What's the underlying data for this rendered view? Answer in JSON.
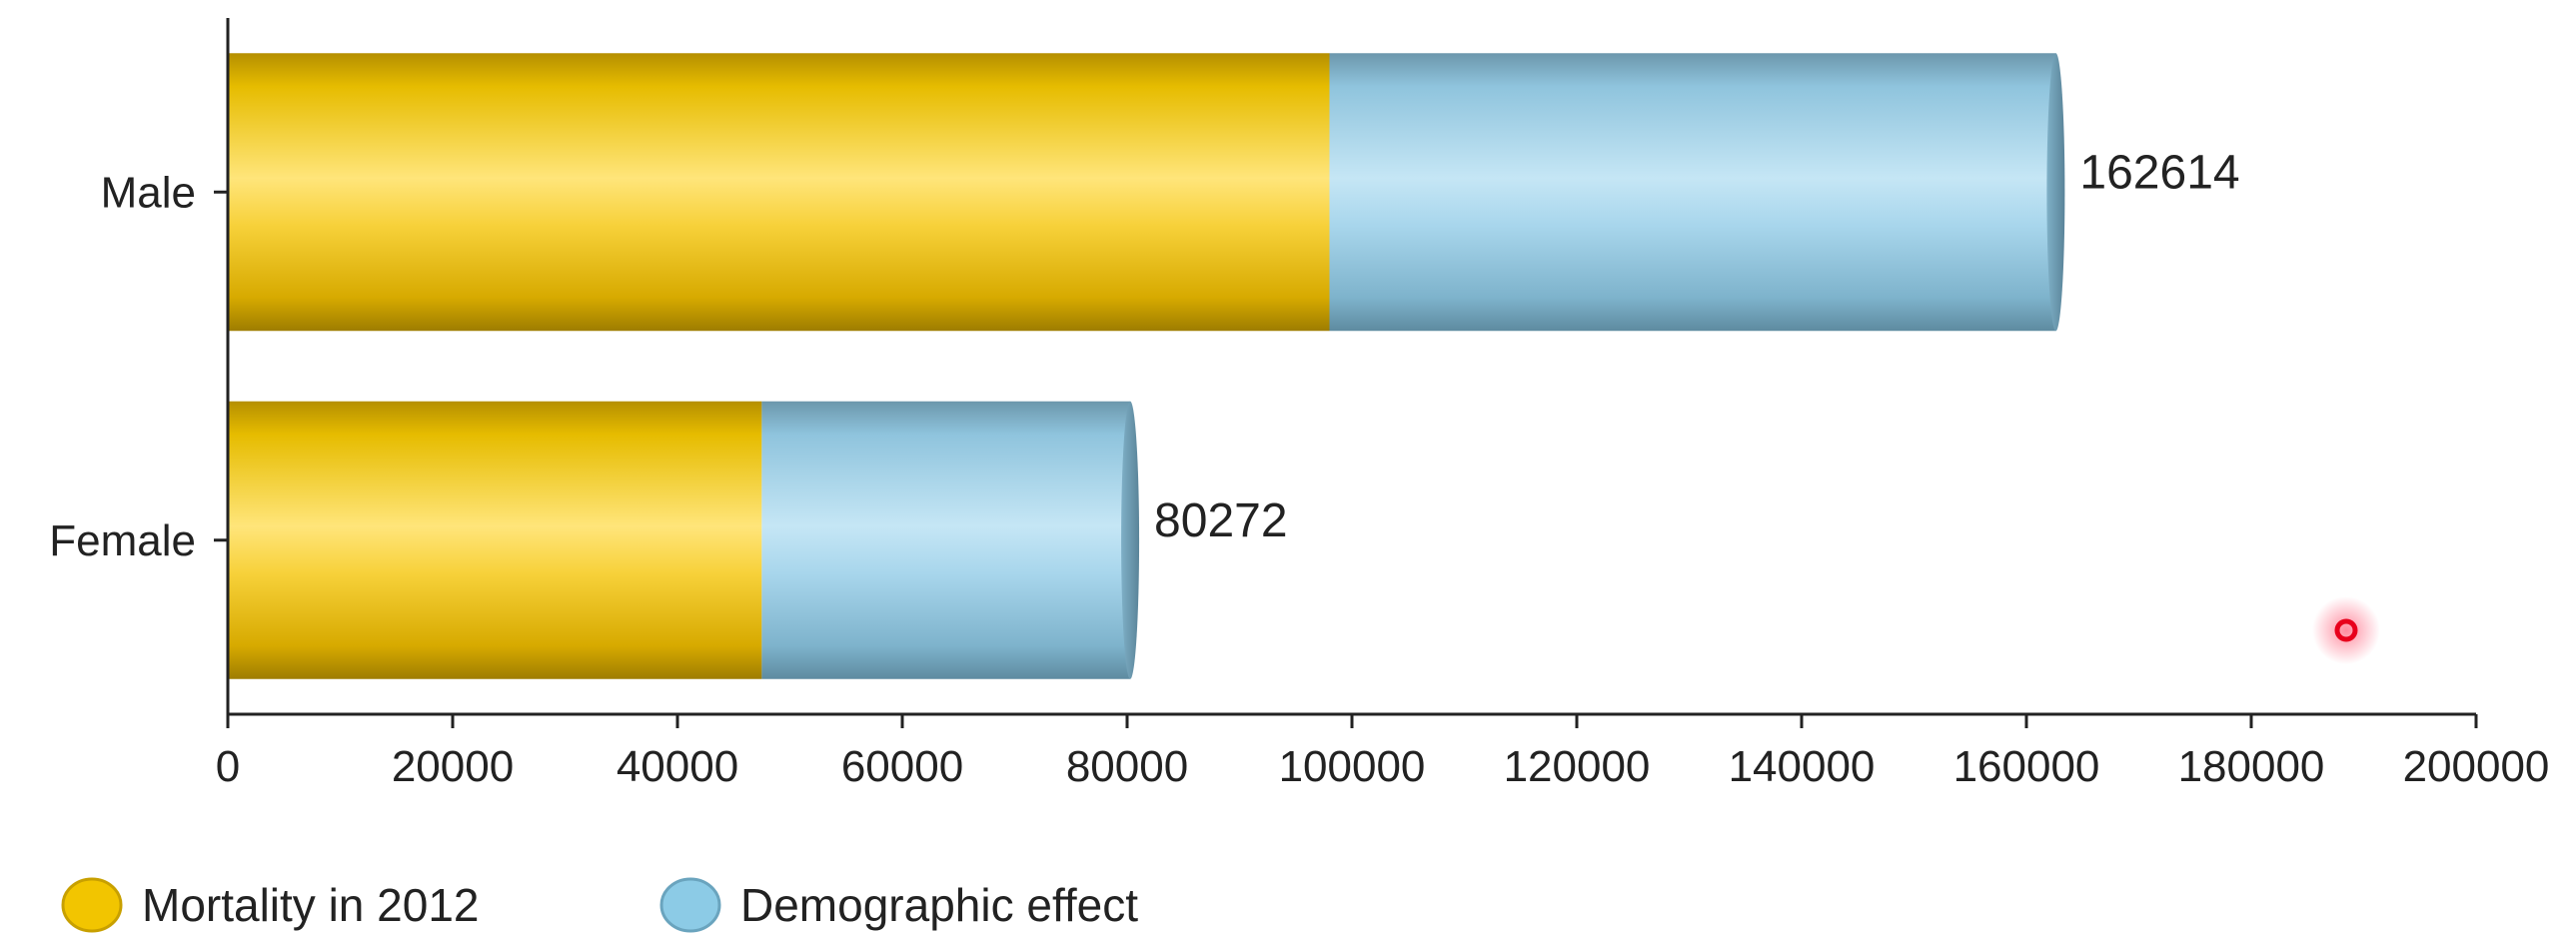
{
  "chart_data": {
    "type": "bar",
    "orientation": "horizontal",
    "stacked": true,
    "style": "3d-cylinder",
    "title": "",
    "xlabel": "",
    "ylabel": "",
    "categories": [
      "Male",
      "Female"
    ],
    "series": [
      {
        "name": "Mortality in 2012",
        "values": [
          98000,
          47500
        ],
        "color": "#F2C500"
      },
      {
        "name": "Demographic effect",
        "values": [
          64614,
          32772
        ],
        "color": "#8CCBE6"
      }
    ],
    "totals": [
      "162614",
      "80272"
    ],
    "xlim": [
      0,
      200000
    ],
    "xticks": [
      "0",
      "20000",
      "40000",
      "60000",
      "80000",
      "100000",
      "120000",
      "140000",
      "160000",
      "180000",
      "200000"
    ],
    "grid": false,
    "legend_position": "bottom-left"
  },
  "colors": {
    "axis": "#222222",
    "cursor": "#E8001C"
  }
}
